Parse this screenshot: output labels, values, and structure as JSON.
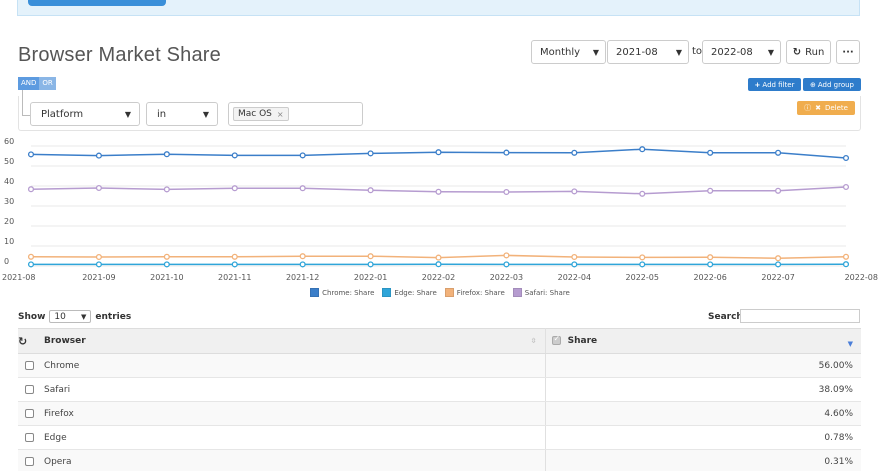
{
  "page": {
    "title": "Browser Market Share"
  },
  "controls": {
    "period": "Monthly",
    "from": "2021-08",
    "to_label": "to",
    "to": "2022-08",
    "run_label": "Run",
    "more_label": "···"
  },
  "filter": {
    "and_label": "AND",
    "or_label": "OR",
    "add_filter_label": "Add filter",
    "add_group_label": "Add group",
    "delete_label": "Delete",
    "field": "Platform",
    "operator": "in",
    "values": [
      "Mac OS"
    ]
  },
  "chart_data": {
    "type": "line",
    "x": [
      "2021-08",
      "2021-09",
      "2021-10",
      "2021-11",
      "2021-12",
      "2022-01",
      "2022-02",
      "2022-03",
      "2022-04",
      "2022-05",
      "2022-06",
      "2022-07",
      "2022-08"
    ],
    "ylim": [
      0,
      60
    ],
    "yticks": [
      0,
      10,
      20,
      30,
      40,
      50,
      60
    ],
    "grid": true,
    "legend_position": "bottom",
    "series": [
      {
        "name": "Chrome: Share",
        "color": "#3b7ec9",
        "values": [
          55.8,
          55.2,
          55.9,
          55.3,
          55.3,
          56.3,
          56.9,
          56.7,
          56.6,
          58.4,
          56.6,
          56.6,
          54.0
        ]
      },
      {
        "name": "Edge: Share",
        "color": "#2fa5d9",
        "values": [
          0.8,
          0.8,
          0.8,
          0.8,
          0.8,
          0.8,
          0.9,
          0.8,
          0.8,
          0.8,
          0.8,
          0.8,
          0.9
        ]
      },
      {
        "name": "Firefox: Share",
        "color": "#f2b27a",
        "values": [
          4.6,
          4.5,
          4.6,
          4.6,
          4.9,
          4.9,
          4.2,
          5.3,
          4.5,
          4.3,
          4.4,
          3.9,
          4.6
        ]
      },
      {
        "name": "Safari: Share",
        "color": "#b69cd0",
        "values": [
          38.4,
          39.0,
          38.3,
          38.9,
          38.9,
          37.9,
          37.1,
          37.0,
          37.3,
          36.1,
          37.6,
          37.6,
          39.5
        ]
      }
    ]
  },
  "table": {
    "show_label": "Show",
    "entries_label": "entries",
    "page_length": "10",
    "search_label": "Search:",
    "columns": {
      "browser": "Browser",
      "share": "Share"
    },
    "rows": [
      {
        "browser": "Chrome",
        "share": "56.00%"
      },
      {
        "browser": "Safari",
        "share": "38.09%"
      },
      {
        "browser": "Firefox",
        "share": "4.60%"
      },
      {
        "browser": "Edge",
        "share": "0.78%"
      },
      {
        "browser": "Opera",
        "share": "0.31%"
      }
    ]
  }
}
